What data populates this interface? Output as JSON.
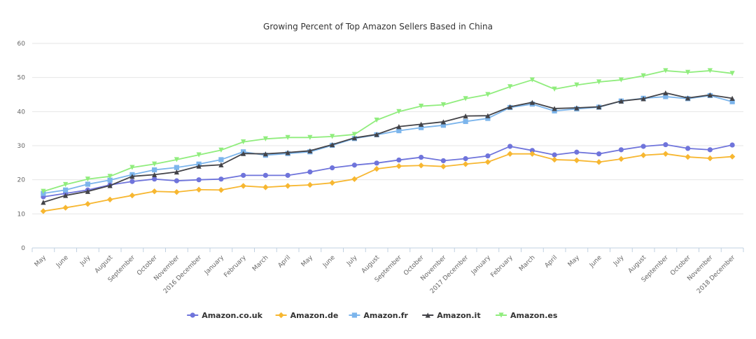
{
  "chart_data": {
    "type": "line",
    "title": "Growing Percent of Top Amazon Sellers Based in China",
    "xlabel": "",
    "ylabel": "",
    "ylim": [
      0,
      60
    ],
    "yticks": [
      0,
      10,
      20,
      30,
      40,
      50,
      60
    ],
    "grid": true,
    "legend_position": "bottom-center",
    "categories": [
      "May",
      "June",
      "July",
      "August",
      "September",
      "October",
      "November",
      "2016 December",
      "January",
      "February",
      "March",
      "April",
      "May",
      "June",
      "July",
      "August",
      "September",
      "October",
      "November",
      "2017 December",
      "January",
      "February",
      "March",
      "April",
      "May",
      "June",
      "July",
      "August",
      "September",
      "October",
      "November",
      "2018 December"
    ],
    "series": [
      {
        "name": "Amazon.co.uk",
        "color": "#6f74db",
        "marker": "circle",
        "values": [
          15,
          16,
          17,
          18.5,
          19.5,
          20.2,
          19.7,
          20,
          20.2,
          21.3,
          21.3,
          21.3,
          22.3,
          23.5,
          24.3,
          24.9,
          25.8,
          26.6,
          25.6,
          26.2,
          27,
          29.8,
          28.6,
          27.3,
          28.1,
          27.6,
          28.8,
          29.8,
          30.3,
          29.2,
          28.8,
          30.2
        ]
      },
      {
        "name": "Amazon.de",
        "color": "#f7b731",
        "marker": "diamond",
        "values": [
          10.8,
          11.8,
          12.9,
          14.2,
          15.4,
          16.6,
          16.4,
          17.1,
          17,
          18.2,
          17.8,
          18.2,
          18.5,
          19.1,
          20.2,
          23.2,
          24,
          24.2,
          23.9,
          24.6,
          25.2,
          27.6,
          27.6,
          25.9,
          25.7,
          25.2,
          26.1,
          27.2,
          27.6,
          26.7,
          26.3,
          26.8
        ]
      },
      {
        "name": "Amazon.fr",
        "color": "#7cb5ec",
        "marker": "square",
        "values": [
          16,
          17,
          18.7,
          19.9,
          21.5,
          22.9,
          23.6,
          24.6,
          25.9,
          28.2,
          27.2,
          27.7,
          28.2,
          30.1,
          32.1,
          33.2,
          34.4,
          35.3,
          36,
          37.1,
          38,
          41.2,
          42.2,
          40.2,
          40.8,
          41.3,
          43.1,
          43.9,
          44.4,
          43.8,
          44.7,
          42.9
        ]
      },
      {
        "name": "Amazon.it",
        "color": "#434348",
        "marker": "triangle",
        "values": [
          13.4,
          15.4,
          16.6,
          18.3,
          21,
          21.5,
          22.3,
          24,
          24.4,
          27.7,
          27.6,
          28,
          28.5,
          30.3,
          32.3,
          33.3,
          35.6,
          36.3,
          37,
          38.7,
          38.8,
          41.4,
          42.7,
          40.9,
          41.1,
          41.4,
          43.1,
          43.8,
          45.5,
          44,
          44.9,
          43.9
        ]
      },
      {
        "name": "Amazon.es",
        "color": "#90ed7d",
        "marker": "triangle-down",
        "values": [
          16.6,
          18.6,
          20.2,
          21,
          23.6,
          24.6,
          25.9,
          27.3,
          28.7,
          31.1,
          32,
          32.4,
          32.4,
          32.7,
          33.3,
          37.5,
          40,
          41.6,
          42,
          43.8,
          45,
          47.3,
          49.3,
          46.6,
          47.8,
          48.7,
          49.3,
          50.5,
          52,
          51.5,
          52,
          51.2
        ]
      }
    ]
  }
}
